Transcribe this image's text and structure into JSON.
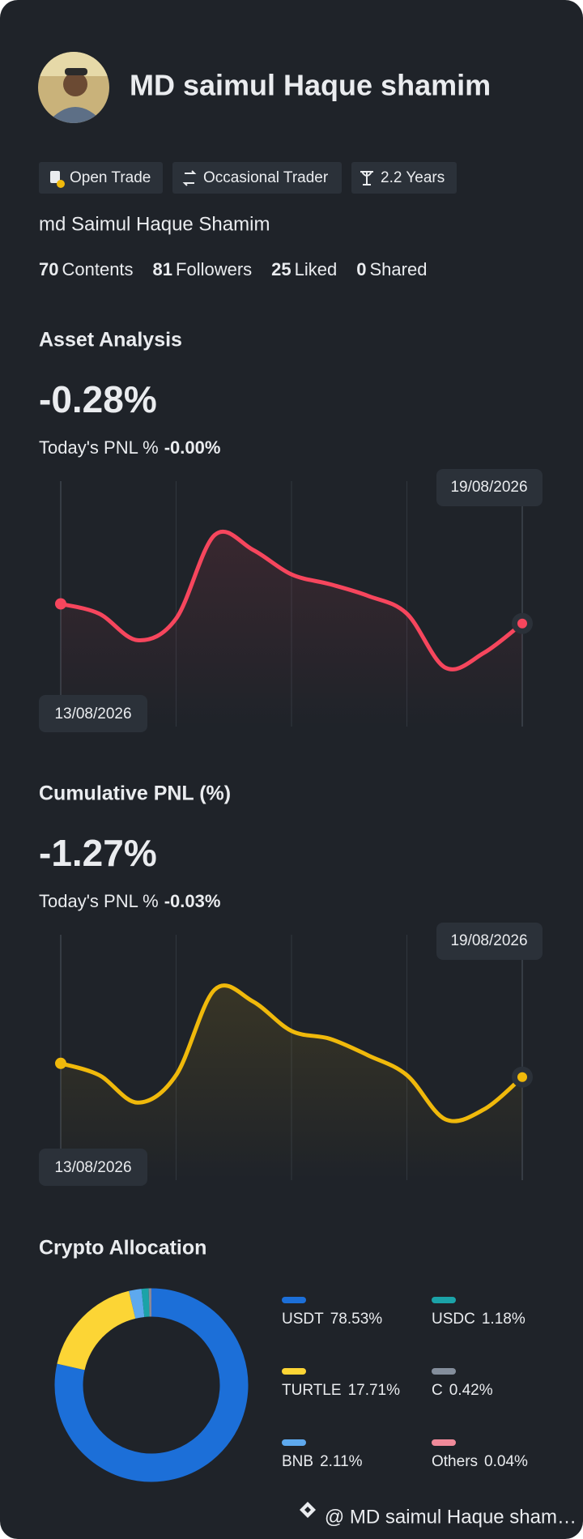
{
  "profile": {
    "name": "MD saimul Haque shamim",
    "badges": [
      "Open Trade",
      "Occasional Trader",
      "2.2 Years"
    ],
    "nickname": "md Saimul Haque Shamim",
    "stats": [
      {
        "count": 70,
        "label": "Contents"
      },
      {
        "count": 81,
        "label": "Followers"
      },
      {
        "count": 25,
        "label": "Liked"
      },
      {
        "count": 0,
        "label": "Shared"
      }
    ]
  },
  "asset_analysis": {
    "title": "Asset Analysis",
    "value": "-0.28%",
    "today_label": "Today's PNL %",
    "today_value": "-0.00%",
    "chart": {
      "type": "line",
      "start_date": "13/08/2026",
      "end_date": "19/08/2026",
      "color": "#f6465d",
      "ylim": [
        -40,
        210
      ],
      "values": [
        85,
        75,
        48,
        70,
        155,
        140,
        115,
        105,
        93,
        75,
        20,
        35,
        65
      ]
    }
  },
  "cumulative_pnl": {
    "title": "Cumulative PNL (%)",
    "value": "-1.27%",
    "today_label": "Today's PNL %",
    "today_value": "-0.03%",
    "chart": {
      "type": "line",
      "start_date": "13/08/2026",
      "end_date": "19/08/2026",
      "color": "#f0b90b",
      "ylim": [
        -40,
        210
      ],
      "values": [
        79,
        67,
        39,
        67,
        154,
        142,
        112,
        104,
        87,
        67,
        22,
        32,
        65
      ]
    }
  },
  "crypto_allocation": {
    "title": "Crypto Allocation",
    "chart": {
      "type": "pie",
      "categories": [
        "USDT",
        "TURTLE",
        "BNB",
        "USDC",
        "C",
        "Others"
      ],
      "values": [
        78.53,
        17.71,
        2.11,
        1.18,
        0.42,
        0.04
      ],
      "value_labels": [
        "78.53%",
        "17.71%",
        "2.11%",
        "1.18%",
        "0.42%",
        "0.04%"
      ],
      "colors": [
        "#1c6fd8",
        "#fcd535",
        "#5ea9ee",
        "#1ba3a8",
        "#848e9c",
        "#f08a9a"
      ]
    }
  },
  "footer": "@ MD saimul Haque sham…"
}
